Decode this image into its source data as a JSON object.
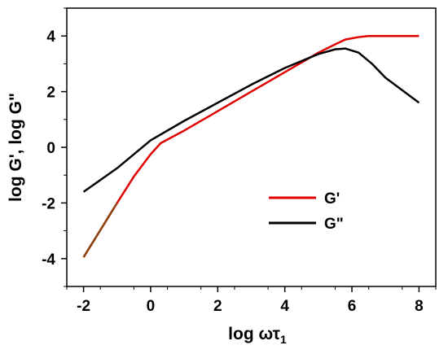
{
  "chart_data": {
    "type": "line",
    "xlabel": "log ωτ",
    "xlabel_subscript": "1",
    "ylabel": "log G', log G\"",
    "xlim": [
      -2.5,
      8.5
    ],
    "ylim": [
      -5,
      5
    ],
    "xticks": [
      -2,
      0,
      2,
      4,
      6,
      8
    ],
    "yticks": [
      -4,
      -2,
      0,
      2,
      4
    ],
    "legend_position": "center-right",
    "series": [
      {
        "name": "G'",
        "color": "#e00000",
        "lower_segment_color": "#8b4513",
        "x": [
          -2,
          -1,
          -0.5,
          0,
          0.3,
          1,
          2,
          3,
          4,
          5,
          5.5,
          5.8,
          6.2,
          6.5,
          7,
          8
        ],
        "y": [
          -3.95,
          -2.0,
          -1.05,
          -0.25,
          0.15,
          0.6,
          1.3,
          2.0,
          2.7,
          3.4,
          3.7,
          3.87,
          3.96,
          4.0,
          4.0,
          4.0
        ]
      },
      {
        "name": "G\"",
        "color": "#000000",
        "x": [
          -2,
          -1,
          0,
          1,
          2,
          3,
          4,
          5,
          5.5,
          5.8,
          6.2,
          6.6,
          7,
          7.5,
          8
        ],
        "y": [
          -1.6,
          -0.75,
          0.25,
          0.95,
          1.6,
          2.25,
          2.85,
          3.35,
          3.52,
          3.55,
          3.4,
          3.0,
          2.5,
          2.05,
          1.6
        ]
      }
    ]
  }
}
